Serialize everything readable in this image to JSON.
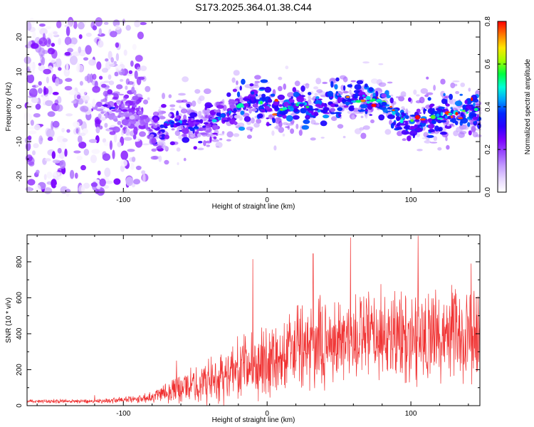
{
  "chart_data": [
    {
      "type": "heatmap",
      "title": "S173.2025.364.01.38.C44",
      "xlabel": "Height of straight line (km)",
      "ylabel": "Frequency (Hz)",
      "xlim": [
        -167,
        148
      ],
      "ylim": [
        -24.5,
        24.5
      ],
      "xticks": [
        -100,
        0,
        100
      ],
      "yticks": [
        -20,
        -10,
        0,
        10,
        20
      ],
      "colorbar": {
        "label": "Normalized spectral amplitude",
        "range": [
          0.0,
          0.8
        ],
        "ticks": [
          "0.0",
          "0.2",
          "0.4",
          "0.6",
          "0.8"
        ],
        "colormap": [
          "#ffffff",
          "#e6d6ff",
          "#c39bff",
          "#9a4cff",
          "#7a00ff",
          "#2a00ff",
          "#0028ff",
          "#00a0ff",
          "#00ffd8",
          "#00ff40",
          "#a0ff00",
          "#ffe600",
          "#ff7800",
          "#ff0000"
        ]
      },
      "ridge_frequency_hz": {
        "x_km": [
          -110,
          -100,
          -90,
          -80,
          -70,
          -60,
          -50,
          -40,
          -30,
          -20,
          -10,
          0,
          10,
          20,
          30,
          40,
          50,
          60,
          70,
          80,
          90,
          100,
          110,
          120,
          130,
          140,
          148
        ],
        "freq_hz": [
          0,
          -1,
          0,
          -8,
          -5,
          -4,
          -6,
          -5,
          -2,
          0,
          2,
          1,
          -1,
          1,
          0,
          0,
          2,
          2,
          2,
          2,
          -3,
          -4,
          -3,
          -3,
          -2,
          -1,
          -1
        ]
      },
      "noise_region_km": [
        -167,
        -85
      ]
    },
    {
      "type": "line",
      "xlabel": "Height of straight line (km)",
      "ylabel": "SNR (10 * v/v)",
      "xlim": [
        -167,
        148
      ],
      "ylim": [
        0,
        950
      ],
      "xticks": [
        -100,
        0,
        100
      ],
      "yticks": [
        0,
        200,
        400,
        600,
        800
      ],
      "series": [
        {
          "name": "SNR",
          "color": "#f03030",
          "envelope_x_km": [
            -167,
            -120,
            -90,
            -80,
            -70,
            -60,
            -50,
            -40,
            -30,
            -20,
            -10,
            0,
            10,
            20,
            30,
            40,
            50,
            60,
            70,
            80,
            90,
            100,
            110,
            120,
            130,
            140,
            148
          ],
          "baseline": [
            25,
            25,
            35,
            55,
            80,
            100,
            110,
            140,
            170,
            200,
            230,
            250,
            280,
            310,
            330,
            350,
            360,
            370,
            380,
            390,
            390,
            390,
            395,
            400,
            395,
            390,
            390
          ],
          "amplitude": [
            12,
            15,
            25,
            45,
            75,
            100,
            120,
            160,
            180,
            200,
            220,
            240,
            260,
            280,
            290,
            300,
            300,
            300,
            300,
            300,
            300,
            300,
            300,
            300,
            300,
            300,
            300
          ],
          "peaks": [
            {
              "x_km": -120,
              "y": 58
            },
            {
              "x_km": -63,
              "y": 250
            },
            {
              "x_km": -10,
              "y": 815
            },
            {
              "x_km": 32,
              "y": 845
            },
            {
              "x_km": 58,
              "y": 935
            },
            {
              "x_km": 105,
              "y": 945
            },
            {
              "x_km": 142,
              "y": 790
            }
          ]
        }
      ]
    }
  ]
}
